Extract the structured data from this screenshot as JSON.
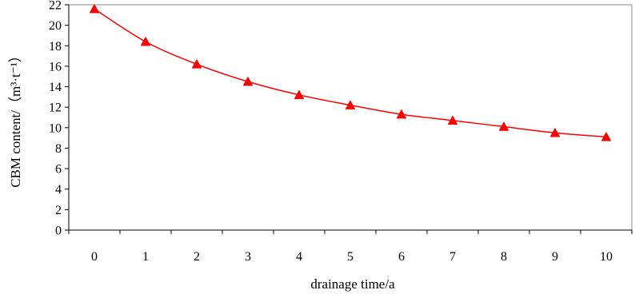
{
  "chart_data": {
    "type": "line",
    "title": "",
    "xlabel": "drainage time/a",
    "ylabel": "CBM content/（m³·t⁻¹）",
    "x": [
      0,
      1,
      2,
      3,
      4,
      5,
      6,
      7,
      8,
      9,
      10
    ],
    "xlim": [
      -0.5,
      10.5
    ],
    "ylim": [
      0,
      22
    ],
    "xticks": [
      0,
      1,
      2,
      3,
      4,
      5,
      6,
      7,
      8,
      9,
      10
    ],
    "yticks": [
      0,
      2,
      4,
      6,
      8,
      10,
      12,
      14,
      16,
      18,
      20,
      22
    ],
    "grid": false,
    "legend": "none",
    "series": [
      {
        "marker": "triangle",
        "color": "#ff0000",
        "values": [
          21.6,
          18.4,
          16.2,
          14.5,
          13.2,
          12.2,
          11.3,
          10.7,
          10.1,
          9.5,
          9.1
        ]
      }
    ]
  }
}
